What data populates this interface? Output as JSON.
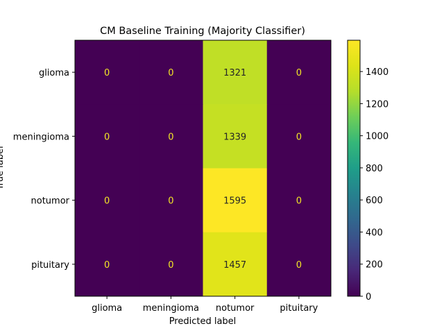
{
  "chart_data": {
    "type": "heatmap",
    "title": "CM Baseline Training (Majority Classifier)",
    "xlabel": "Predicted label",
    "ylabel": "True label",
    "x_categories": [
      "glioma",
      "meningioma",
      "notumor",
      "pituitary"
    ],
    "y_categories": [
      "glioma",
      "meningioma",
      "notumor",
      "pituitary"
    ],
    "values": [
      [
        0,
        0,
        1321,
        0
      ],
      [
        0,
        0,
        1339,
        0
      ],
      [
        0,
        0,
        1595,
        0
      ],
      [
        0,
        0,
        1457,
        0
      ]
    ],
    "colorbar": {
      "colormap": "viridis",
      "range": [
        0,
        1595
      ],
      "ticks": [
        0,
        200,
        400,
        600,
        800,
        1000,
        1200,
        1400
      ]
    }
  }
}
